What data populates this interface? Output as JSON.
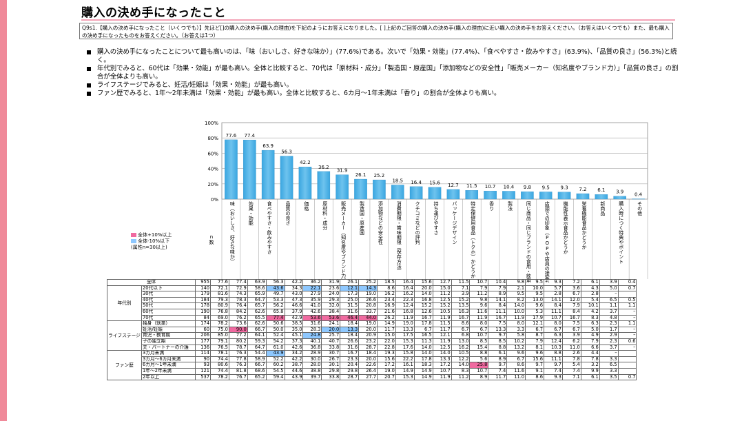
{
  "page": {
    "title": "購入の決め手になったこと",
    "question": "Q9s1.【購入の決め手になったこと（いくつでも）】先ほど[]の購入の決め手(購入の理由)を下記のようにお答えになりました。[ ]上記のご回答の購入の決め手(購入の理由)に近い購入の決め手をお答えください。（お答えはいくつでも）また、最も購入の決め手になったものをお答えください。（お答えは1つ）",
    "bullets": [
      "購入の決め手になったことについて最も高いのは、「味（おいしさ、好きな味か）」(77.6%)である。次いで「効果・効能」(77.4%)、「食べやすさ・飲みやすさ」(63.9%)、「品質の良さ」(56.3%)と続く。",
      "年代別でみると、60代は「効果・効能」が最も高い。全体と比較すると、70代は「原材料・成分」「製造国・原産国」「添加物などの安全性」「販売メーカー（知名度やブランド力）」「品質の良さ」の割合が全体よりも高い。",
      "ライフステージでみると、妊活/妊娠は「効果・効能」が最も高い。",
      "ファン歴でみると、1年～2年未満は「効果・効能」が最も高い。全体と比較すると、6カ月～1年未満は「香り」の割合が全体よりも高い。"
    ],
    "legend": {
      "high": "全体+10%以上",
      "low": "全体-10%以下",
      "note": "(属性n=30以上)",
      "high_color": "#f06aa0",
      "low_color": "#8ec8ff"
    },
    "n_label": "n\n数"
  },
  "chart_data": {
    "type": "bar",
    "ylim": [
      0,
      100
    ],
    "yticks": [
      "0%",
      "20%",
      "40%",
      "60%",
      "80%",
      "100%"
    ],
    "bar_color": "#6ec3ee",
    "categories": [
      "味（おいしさ、好きな味か）",
      "効果・効能",
      "食べやすさ・飲みやすさ",
      "品質の良さ",
      "価格",
      "原材料・成分",
      "販売メーカー（知名度やブランド力）",
      "製造国・原産国",
      "添加物などの安全性",
      "消費期限・賞味期限（保存方法）",
      "クチコミなどの評判",
      "持ち運びやすさ",
      "パッケージデザイン",
      "特定保健用食品（トクホ）かどうか",
      "香り",
      "製法",
      "同じ商品・同じブランドの食用・飲用経験",
      "店頭での印象（POPや店員の接客など）",
      "機能性表示食品かどうか",
      "栄養機能食品かどうか",
      "新商品",
      "購入時につく特典やポイント",
      "その他"
    ],
    "values": [
      77.6,
      77.4,
      63.9,
      56.3,
      42.2,
      36.2,
      31.9,
      26.1,
      25.2,
      18.5,
      16.4,
      15.6,
      12.7,
      11.5,
      10.7,
      10.4,
      9.8,
      9.5,
      9.3,
      7.2,
      6.1,
      3.9,
      0.4
    ],
    "value_labels": [
      "77.6",
      "77.4",
      "63.9",
      "56.3",
      "42.2",
      "36.2",
      "31.9",
      "26.1",
      "25.2",
      "18.5",
      "16.4",
      "15.6",
      "12.7",
      "11.5",
      "10.7",
      "10.4",
      "9.8",
      "9.5",
      "9.3",
      "7.2",
      "6.1",
      "3.9",
      "0.4"
    ]
  },
  "table": {
    "rows": [
      {
        "group": "",
        "label": "全体",
        "n": "955",
        "v": [
          "77.6",
          "77.4",
          "63.9",
          "56.3",
          "42.2",
          "36.2",
          "31.9",
          "26.1",
          "25.2",
          "18.5",
          "16.4",
          "15.6",
          "12.7",
          "11.5",
          "10.7",
          "10.4",
          "9.8",
          "9.5",
          "9.3",
          "7.2",
          "6.1",
          "3.9",
          "0.4"
        ],
        "hl": {}
      },
      {
        "group": "年代別",
        "label": "20代以下",
        "n": "140",
        "v": [
          "72.1",
          "72.9",
          "58.6",
          "43.6",
          "34.3",
          "22.1",
          "23.6",
          "12.1",
          "14.3",
          "8.6",
          "16.4",
          "20.0",
          "15.0",
          "7.1",
          "7.9",
          "7.9",
          "2.1",
          "10.0",
          "5.7",
          "3.6",
          "4.3",
          "5.0",
          "0.7"
        ],
        "hl": {
          "3": "lo",
          "5": "lo",
          "7": "lo",
          "8": "lo"
        }
      },
      {
        "group": "年代別",
        "label": "30代",
        "n": "179",
        "v": [
          "81.6",
          "74.3",
          "65.9",
          "49.7",
          "43.0",
          "27.9",
          "24.0",
          "17.3",
          "19.0",
          "16.2",
          "16.2",
          "14.0",
          "11.2",
          "3.9",
          "11.2",
          "8.9",
          "9.5",
          "9.5",
          "2.8",
          "6.7",
          "2.8",
          "–",
          ""
        ],
        "hl": {}
      },
      {
        "group": "年代別",
        "label": "40代",
        "n": "184",
        "v": [
          "79.3",
          "78.3",
          "64.7",
          "53.3",
          "47.3",
          "35.9",
          "29.3",
          "25.0",
          "26.6",
          "23.4",
          "22.3",
          "16.8",
          "12.5",
          "15.2",
          "9.8",
          "14.1",
          "8.2",
          "13.0",
          "14.1",
          "12.0",
          "5.4",
          "6.5",
          "0.5"
        ],
        "hl": {}
      },
      {
        "group": "年代別",
        "label": "50代",
        "n": "178",
        "v": [
          "80.9",
          "76.4",
          "65.7",
          "56.2",
          "46.6",
          "41.0",
          "32.0",
          "31.5",
          "20.8",
          "16.9",
          "12.4",
          "15.2",
          "15.2",
          "13.5",
          "9.6",
          "8.4",
          "14.0",
          "9.6",
          "8.4",
          "7.9",
          "10.1",
          "1.1",
          "1.1"
        ],
        "hl": {}
      },
      {
        "group": "年代別",
        "label": "60代",
        "n": "190",
        "v": [
          "76.8",
          "84.2",
          "62.6",
          "65.8",
          "37.9",
          "42.6",
          "38.4",
          "31.6",
          "33.7",
          "21.6",
          "16.8",
          "12.6",
          "10.5",
          "16.3",
          "11.6",
          "11.1",
          "10.0",
          "5.3",
          "11.1",
          "8.4",
          "4.2",
          "3.7",
          "–"
        ],
        "hl": {}
      },
      {
        "group": "年代別",
        "label": "70代",
        "n": "84",
        "v": [
          "69.0",
          "76.2",
          "65.5",
          "77.4",
          "42.9",
          "53.6",
          "53.6",
          "46.4",
          "44.0",
          "26.2",
          "11.9",
          "16.7",
          "11.9",
          "16.7",
          "11.9",
          "16.7",
          "11.9",
          "17.9",
          "10.7",
          "16.7",
          "8.3",
          "4.8",
          "–"
        ],
        "hl": {
          "3": "hi",
          "5": "hi",
          "6": "hi",
          "7": "hi",
          "8": "hi"
        }
      },
      {
        "group": "ライフステージ",
        "label": "独身（就業）",
        "n": "174",
        "v": [
          "78.2",
          "73.6",
          "62.6",
          "50.6",
          "38.5",
          "31.6",
          "24.1",
          "18.4",
          "19.0",
          "14.9",
          "19.0",
          "17.8",
          "11.5",
          "8.6",
          "8.0",
          "7.5",
          "8.0",
          "12.1",
          "8.0",
          "7.5",
          "6.3",
          "2.3",
          "1.1"
        ],
        "hl": {}
      },
      {
        "group": "ライフステージ",
        "label": "妊活/妊娠",
        "n": "60",
        "v": [
          "75.0",
          "90.0",
          "66.7",
          "50.0",
          "35.0",
          "28.3",
          "20.0",
          "13.3",
          "20.0",
          "11.7",
          "13.3",
          "6.7",
          "11.7",
          "6.7",
          "6.7",
          "13.3",
          "3.3",
          "6.7",
          "6.7",
          "6.7",
          "5.0",
          "1.7",
          "–"
        ],
        "hl": {
          "1": "hi",
          "6": "lo",
          "7": "lo"
        }
      },
      {
        "group": "ライフステージ",
        "label": "育児・教育期",
        "n": "206",
        "v": [
          "85.0",
          "77.2",
          "64.1",
          "52.4",
          "45.1",
          "24.8",
          "25.7",
          "18.4",
          "20.9",
          "15.0",
          "17.5",
          "16.5",
          "12.1",
          "6.8",
          "10.7",
          "9.7",
          "5.8",
          "8.7",
          "6.3",
          "3.9",
          "4.9",
          "2.9",
          "–"
        ],
        "hl": {
          "5": "lo"
        }
      },
      {
        "group": "ライフステージ",
        "label": "子の独立期",
        "n": "177",
        "v": [
          "79.1",
          "80.2",
          "59.3",
          "54.2",
          "37.3",
          "40.1",
          "40.7",
          "26.6",
          "23.2",
          "22.0",
          "15.3",
          "11.3",
          "11.9",
          "13.0",
          "8.5",
          "8.5",
          "10.2",
          "7.9",
          "12.4",
          "6.2",
          "7.9",
          "2.3",
          "0.6"
        ],
        "hl": {}
      },
      {
        "group": "ライフステージ",
        "label": "夫・パートナーの介護",
        "n": "136",
        "v": [
          "76.5",
          "78.7",
          "64.7",
          "61.0",
          "42.6",
          "36.8",
          "33.8",
          "31.6",
          "28.7",
          "22.8",
          "17.6",
          "14.0",
          "12.5",
          "16.2",
          "15.4",
          "8.8",
          "13.2",
          "8.1",
          "10.3",
          "11.0",
          "6.6",
          "3.7",
          "–"
        ],
        "hl": {}
      },
      {
        "group": "ファン歴",
        "label": "3カ月未満",
        "n": "114",
        "v": [
          "78.1",
          "76.3",
          "54.4",
          "43.9",
          "34.2",
          "28.9",
          "30.7",
          "16.7",
          "18.4",
          "19.3",
          "15.8",
          "14.0",
          "14.0",
          "10.5",
          "8.8",
          "6.1",
          "9.6",
          "9.6",
          "8.8",
          "2.6",
          "4.4",
          "–",
          ""
        ],
        "hl": {
          "3": "lo"
        }
      },
      {
        "group": "ファン歴",
        "label": "3カ月～6カ月未満",
        "n": "90",
        "v": [
          "74.4",
          "77.8",
          "58.9",
          "52.2",
          "42.2",
          "30.0",
          "26.7",
          "23.3",
          "20.0",
          "15.6",
          "22.2",
          "17.8",
          "13.3",
          "12.2",
          "5.6",
          "8.9",
          "6.7",
          "15.6",
          "11.1",
          "7.8",
          "7.8",
          "3.3",
          ""
        ],
        "hl": {}
      },
      {
        "group": "ファン歴",
        "label": "6カ月～1年未満",
        "n": "93",
        "v": [
          "80.6",
          "76.3",
          "66.7",
          "60.2",
          "38.7",
          "28.0",
          "30.1",
          "20.4",
          "22.6",
          "17.2",
          "16.1",
          "18.3",
          "17.2",
          "14.0",
          "25.8",
          "9.7",
          "8.6",
          "9.7",
          "9.7",
          "5.4",
          "3.2",
          "6.5",
          ""
        ],
        "hl": {
          "14": "hi"
        }
      },
      {
        "group": "ファン歴",
        "label": "1年～2年未満",
        "n": "121",
        "v": [
          "74.4",
          "81.8",
          "68.6",
          "54.5",
          "44.6",
          "38.8",
          "29.8",
          "29.8",
          "26.4",
          "19.0",
          "14.9",
          "14.9",
          "10.7",
          "8.3",
          "10.7",
          "7.4",
          "11.6",
          "9.1",
          "7.4",
          "7.4",
          "9.9",
          "3.3",
          ""
        ],
        "hl": {}
      },
      {
        "group": "ファン歴",
        "label": "2年以上",
        "n": "537",
        "v": [
          "78.2",
          "76.7",
          "65.2",
          "59.4",
          "43.9",
          "39.7",
          "33.8",
          "28.7",
          "27.7",
          "20.7",
          "15.3",
          "14.9",
          "11.9",
          "11.2",
          "8.9",
          "11.7",
          "11.0",
          "8.6",
          "9.3",
          "7.1",
          "6.1",
          "3.5",
          "0.7"
        ],
        "hl": {}
      }
    ]
  }
}
